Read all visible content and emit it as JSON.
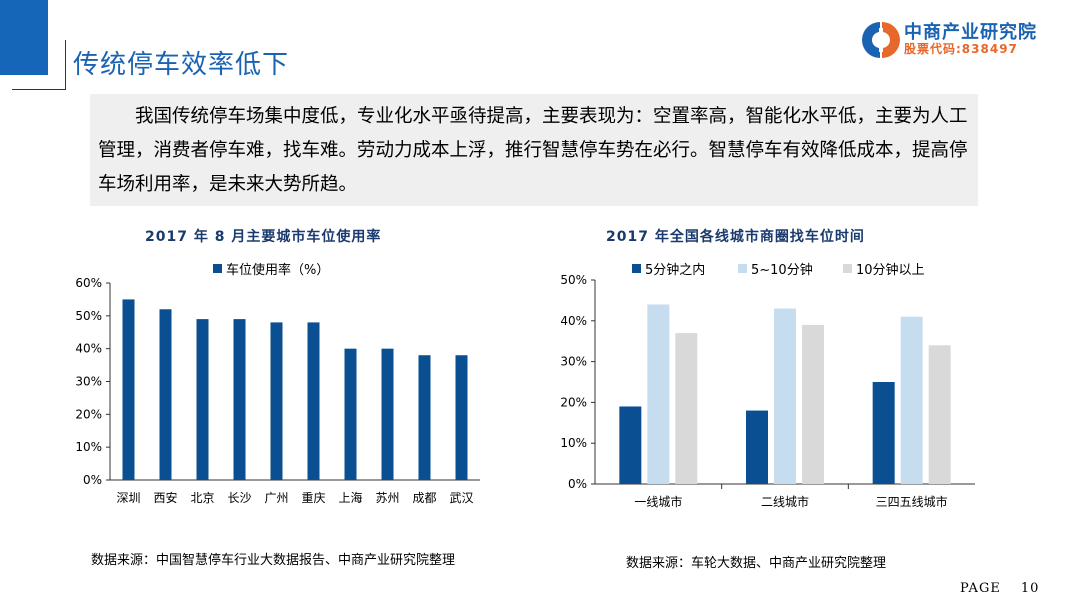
{
  "header": {
    "title": "传统停车效率低下",
    "logo_name": "中商产业研究院",
    "logo_code": "股票代码:838497"
  },
  "intro": {
    "text": "我国传统停车场集中度低，专业化水平亟待提高，主要表现为：空置率高，智能化水平低，主要为人工管理，消费者停车难，找车难。劳动力成本上浮，推行智慧停车势在必行。智慧停车有效降低成本，提高停车场利用率，是未来大势所趋。"
  },
  "colors": {
    "dark": "#0a4f92",
    "light": "#c6dcef",
    "gray": "#d9d9d9",
    "title": "#1a63b3"
  },
  "chart_data": [
    {
      "type": "bar",
      "title": "2017 年 8 月主要城市车位使用率",
      "legend": [
        "车位使用率（%）"
      ],
      "categories": [
        "深圳",
        "西安",
        "北京",
        "长沙",
        "广州",
        "重庆",
        "上海",
        "苏州",
        "成都",
        "武汉"
      ],
      "values": [
        55,
        52,
        49,
        49,
        48,
        48,
        40,
        40,
        38,
        38
      ],
      "ylim": [
        0,
        60
      ],
      "yticks": [
        "0%",
        "10%",
        "20%",
        "30%",
        "40%",
        "50%",
        "60%"
      ],
      "xlabel": "",
      "ylabel": ""
    },
    {
      "type": "bar",
      "title": "2017 年全国各线城市商圈找车位时间",
      "categories": [
        "一线城市",
        "二线城市",
        "三四五线城市"
      ],
      "series": [
        {
          "name": "5分钟之内",
          "values": [
            19,
            18,
            25
          ]
        },
        {
          "name": "5~10分钟",
          "values": [
            44,
            43,
            41
          ]
        },
        {
          "name": "10分钟以上",
          "values": [
            37,
            39,
            34
          ]
        }
      ],
      "ylim": [
        0,
        50
      ],
      "yticks": [
        "0%",
        "10%",
        "20%",
        "30%",
        "40%",
        "50%"
      ],
      "xlabel": "",
      "ylabel": ""
    }
  ],
  "sources": {
    "left": "数据来源：中国智慧停车行业大数据报告、中商产业研究院整理",
    "right": "数据来源：车轮大数据、中商产业研究院整理"
  },
  "footer": {
    "page_label": "PAGE",
    "page_number": "10"
  }
}
